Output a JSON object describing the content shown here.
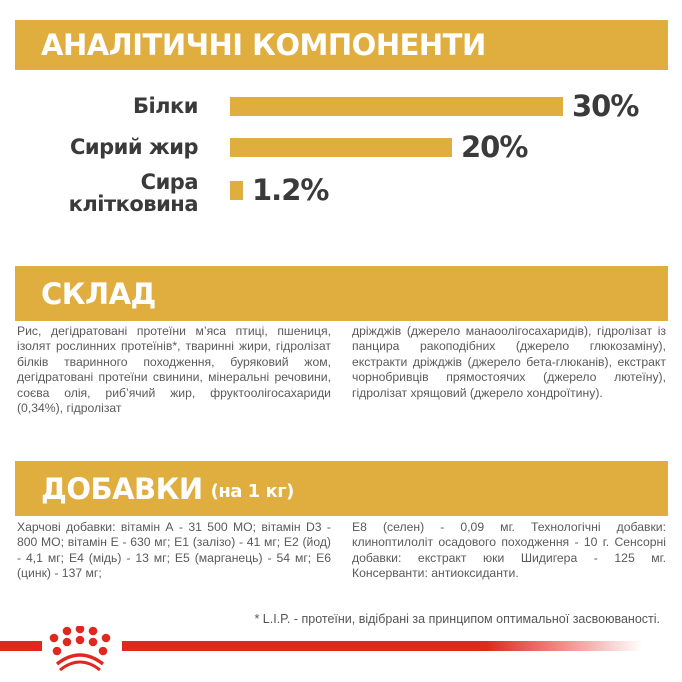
{
  "sections": {
    "analytics": {
      "title": "АНАЛІТИЧНІ КОМПОНЕНТИ"
    },
    "composition": {
      "title": "СКЛАД",
      "text_left": "Рис, дегідратовані протеїни м’яса птиці, пшениця, ізолят рослинних протеїнів*, тваринні жири, гідролізат білків тваринного походження, буряковий жом, дегідратовані протеїни свинини, мінеральні речовини, соєва олія, риб’ячий жир, фруктоолігосахариди (0,34%), гідролізат",
      "text_right": "дріжджів (джерело манаоолігосахаридів), гідролізат із панцира ракоподібних (джерело глюкозаміну), екстракти дріжджів (джерело бета-глюканів), екстракт чорнобривців прямостоячих (джерело лютеїну), гідролізат хрящовий (джерело хондроїтину)."
    },
    "additives": {
      "title": "ДОБАВКИ",
      "subtitle": "(на 1 кг)",
      "text_left": "Харчові добавки: вітамін А - 31 500 МО; вітамін D3 - 800 МО; вітамін Е - 630 мг; Е1 (залізо) - 41 мг; Е2 (йод) - 4,1 мг; Е4 (мідь) - 13 мг; Е5 (марганець) - 54 мг; Е6 (цинк) - 137 мг;",
      "text_right": "Е8 (селен) - 0,09 мг. Технологічні добавки: клиноптилоліт осадового походження - 10 г. Сенсорні добавки: екстракт юки Шидигера - 125 мг. Консерванти: антиоксиданти."
    }
  },
  "footnote": "* L.I.P. - протеїни, відібрані за принципом оптимальної засвоюваності.",
  "colors": {
    "accent": "#e0ad3f",
    "brand_red": "#e0281f",
    "text_dark": "#3a3a3a"
  },
  "chart_data": {
    "type": "bar",
    "orientation": "horizontal",
    "title": "АНАЛІТИЧНІ КОМПОНЕНТИ",
    "categories": [
      "Білки",
      "Сирий жир",
      "Сира клітковина"
    ],
    "values": [
      30,
      20,
      1.2
    ],
    "value_labels": [
      "30%",
      "20%",
      "1.2%"
    ],
    "unit": "%",
    "grid": false,
    "legend": "none"
  },
  "chart_labels": {
    "c0": "Білки",
    "c1": "Сирий жир",
    "c2a": "Сира",
    "c2b": "клітковина",
    "v0": "30%",
    "v1": "20%",
    "v2": "1.2%"
  }
}
